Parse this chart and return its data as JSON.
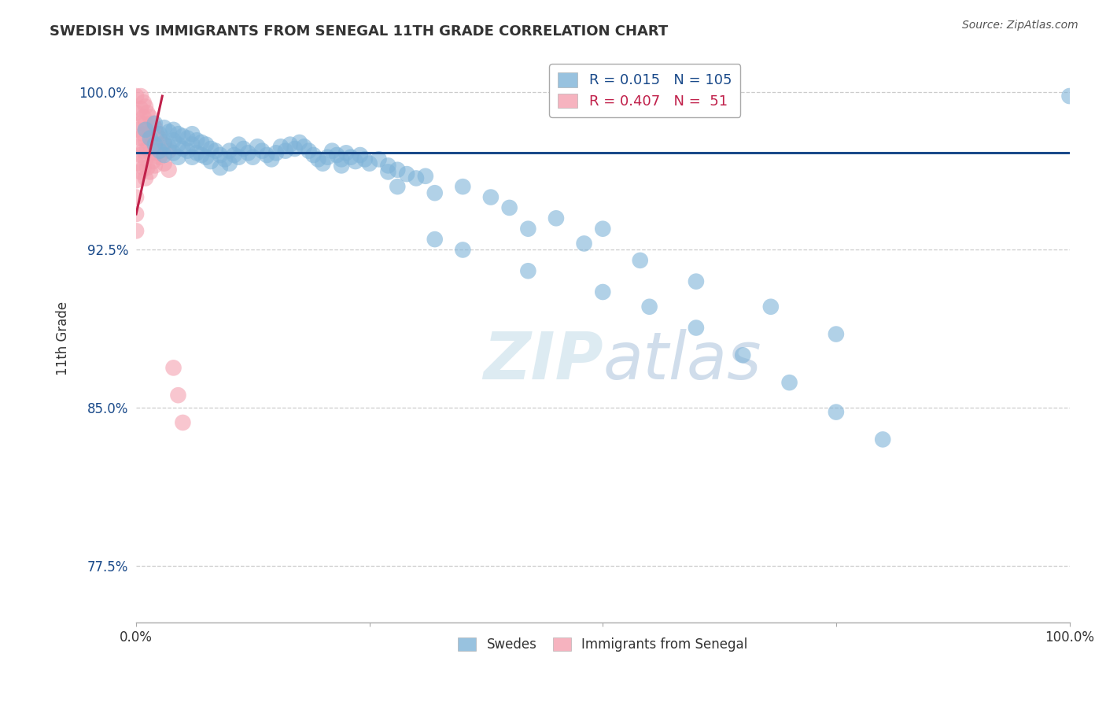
{
  "title": "SWEDISH VS IMMIGRANTS FROM SENEGAL 11TH GRADE CORRELATION CHART",
  "source_text": "Source: ZipAtlas.com",
  "ylabel": "11th Grade",
  "watermark_zip": "ZIP",
  "watermark_atlas": "atlas",
  "legend_entries": [
    "Swedes",
    "Immigrants from Senegal"
  ],
  "blue_R": 0.015,
  "blue_N": 105,
  "pink_R": 0.407,
  "pink_N": 51,
  "blue_color": "#7EB3D8",
  "pink_color": "#F4A0B0",
  "blue_line_color": "#1A4A8A",
  "pink_line_color": "#C0204A",
  "background_color": "#FFFFFF",
  "xmin": 0.0,
  "xmax": 1.0,
  "ymin": 0.748,
  "ymax": 1.018,
  "yticks": [
    0.775,
    0.85,
    0.925,
    1.0
  ],
  "ytick_labels": [
    "77.5%",
    "85.0%",
    "92.5%",
    "100.0%"
  ],
  "blue_scatter_x": [
    0.01,
    0.015,
    0.02,
    0.02,
    0.025,
    0.025,
    0.03,
    0.03,
    0.03,
    0.035,
    0.035,
    0.04,
    0.04,
    0.04,
    0.045,
    0.045,
    0.045,
    0.05,
    0.05,
    0.055,
    0.055,
    0.06,
    0.06,
    0.06,
    0.065,
    0.065,
    0.07,
    0.07,
    0.075,
    0.075,
    0.08,
    0.08,
    0.085,
    0.09,
    0.09,
    0.095,
    0.1,
    0.1,
    0.105,
    0.11,
    0.11,
    0.115,
    0.12,
    0.125,
    0.13,
    0.135,
    0.14,
    0.145,
    0.15,
    0.155,
    0.16,
    0.165,
    0.17,
    0.175,
    0.18,
    0.185,
    0.19,
    0.195,
    0.2,
    0.205,
    0.21,
    0.215,
    0.22,
    0.225,
    0.23,
    0.235,
    0.24,
    0.245,
    0.25,
    0.26,
    0.27,
    0.28,
    0.29,
    0.3,
    0.22,
    0.27,
    0.31,
    0.35,
    0.38,
    0.28,
    0.32,
    0.4,
    0.45,
    0.5,
    0.32,
    0.35,
    0.42,
    0.5,
    0.55,
    0.6,
    0.65,
    0.7,
    0.75,
    0.8,
    0.42,
    0.48,
    0.54,
    0.6,
    0.68,
    0.75,
    1.0
  ],
  "blue_scatter_y": [
    0.982,
    0.978,
    0.985,
    0.975,
    0.98,
    0.972,
    0.983,
    0.976,
    0.97,
    0.981,
    0.974,
    0.982,
    0.977,
    0.971,
    0.98,
    0.975,
    0.969,
    0.979,
    0.973,
    0.978,
    0.972,
    0.98,
    0.975,
    0.969,
    0.977,
    0.971,
    0.976,
    0.97,
    0.975,
    0.969,
    0.973,
    0.967,
    0.972,
    0.97,
    0.964,
    0.968,
    0.972,
    0.966,
    0.97,
    0.975,
    0.969,
    0.973,
    0.971,
    0.969,
    0.974,
    0.972,
    0.97,
    0.968,
    0.971,
    0.974,
    0.972,
    0.975,
    0.973,
    0.976,
    0.974,
    0.972,
    0.97,
    0.968,
    0.966,
    0.969,
    0.972,
    0.97,
    0.968,
    0.971,
    0.969,
    0.967,
    0.97,
    0.968,
    0.966,
    0.968,
    0.965,
    0.963,
    0.961,
    0.959,
    0.965,
    0.962,
    0.96,
    0.955,
    0.95,
    0.955,
    0.952,
    0.945,
    0.94,
    0.935,
    0.93,
    0.925,
    0.915,
    0.905,
    0.898,
    0.888,
    0.875,
    0.862,
    0.848,
    0.835,
    0.935,
    0.928,
    0.92,
    0.91,
    0.898,
    0.885,
    0.998
  ],
  "pink_scatter_x": [
    0.005,
    0.005,
    0.005,
    0.005,
    0.005,
    0.005,
    0.008,
    0.008,
    0.008,
    0.008,
    0.008,
    0.01,
    0.01,
    0.01,
    0.01,
    0.01,
    0.012,
    0.012,
    0.012,
    0.012,
    0.015,
    0.015,
    0.015,
    0.015,
    0.018,
    0.018,
    0.018,
    0.02,
    0.02,
    0.02,
    0.022,
    0.022,
    0.025,
    0.025,
    0.03,
    0.03,
    0.035,
    0.035,
    0.04,
    0.045,
    0.05,
    0.0,
    0.0,
    0.0,
    0.0,
    0.0,
    0.0,
    0.0,
    0.0,
    0.0
  ],
  "pink_scatter_y": [
    0.998,
    0.992,
    0.985,
    0.978,
    0.97,
    0.962,
    0.995,
    0.988,
    0.98,
    0.972,
    0.964,
    0.993,
    0.985,
    0.977,
    0.968,
    0.959,
    0.99,
    0.982,
    0.973,
    0.964,
    0.988,
    0.98,
    0.971,
    0.962,
    0.985,
    0.976,
    0.967,
    0.983,
    0.974,
    0.965,
    0.98,
    0.971,
    0.978,
    0.969,
    0.975,
    0.966,
    0.972,
    0.963,
    0.869,
    0.856,
    0.843,
    0.998,
    0.99,
    0.982,
    0.974,
    0.966,
    0.958,
    0.95,
    0.942,
    0.934
  ],
  "blue_line_x": [
    0.0,
    1.0
  ],
  "blue_line_y": [
    0.971,
    0.971
  ],
  "pink_line_x": [
    0.0,
    0.028
  ],
  "pink_line_y": [
    0.942,
    0.998
  ]
}
